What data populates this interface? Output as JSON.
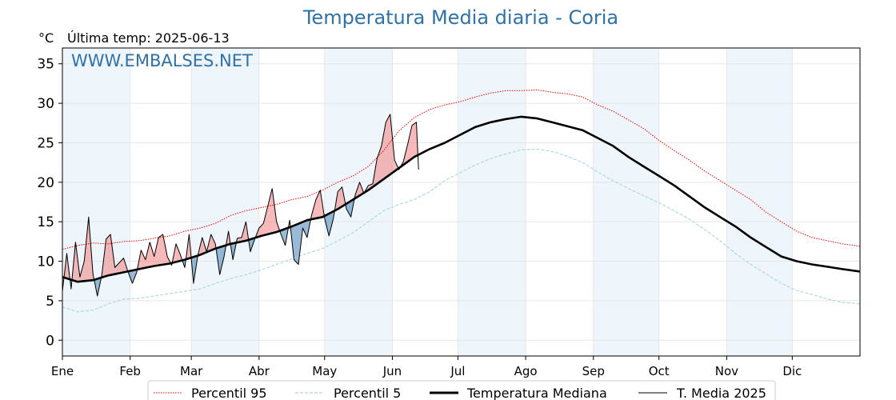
{
  "chart_data": {
    "type": "line",
    "title": "Temperatura Media diaria - Coria",
    "unit_label": "°C",
    "last_temp": "Última temp: 2025-06-13",
    "watermark": "WWW.EMBALSES.NET",
    "x_ticks": [
      "Ene",
      "Feb",
      "Mar",
      "Abr",
      "May",
      "Jun",
      "Jul",
      "Ago",
      "Sep",
      "Oct",
      "Nov",
      "Dic"
    ],
    "month_start_days": [
      1,
      32,
      60,
      91,
      121,
      152,
      182,
      213,
      244,
      274,
      305,
      335
    ],
    "xlim": [
      1,
      366
    ],
    "ylim": [
      -2,
      37
    ],
    "y_ticks": [
      0,
      5,
      10,
      15,
      20,
      25,
      30,
      35
    ],
    "grid": true,
    "legend_position": "bottom",
    "colors": {
      "p95": "#ff0000",
      "p5": "#add8e6",
      "median": "#000000",
      "current": "#000000",
      "above_fill": "#f08080",
      "below_fill": "#4682b4",
      "month_band": "#eef5fb",
      "title": "#2f72a8"
    },
    "series": [
      {
        "name": "Percentil 95",
        "style": "dotted",
        "x": [
          1,
          8,
          15,
          22,
          29,
          36,
          43,
          50,
          57,
          64,
          71,
          78,
          85,
          92,
          99,
          106,
          113,
          120,
          127,
          134,
          141,
          148,
          155,
          162,
          169,
          176,
          183,
          190,
          197,
          204,
          211,
          218,
          225,
          232,
          239,
          246,
          253,
          260,
          267,
          274,
          281,
          288,
          295,
          302,
          309,
          316,
          323,
          330,
          337,
          344,
          351,
          358,
          366
        ],
        "values": [
          11.5,
          12.0,
          12.3,
          12.2,
          12.5,
          12.6,
          12.9,
          13.2,
          13.8,
          14.2,
          14.8,
          15.8,
          16.4,
          16.8,
          17.2,
          17.8,
          18.2,
          19.0,
          20.0,
          20.8,
          22.0,
          24.0,
          26.5,
          28.2,
          29.2,
          29.8,
          30.2,
          30.8,
          31.3,
          31.6,
          31.6,
          31.7,
          31.4,
          31.2,
          30.8,
          29.8,
          29.0,
          27.9,
          26.8,
          25.3,
          24.0,
          22.8,
          21.4,
          20.2,
          19.0,
          17.8,
          16.2,
          15.0,
          13.8,
          13.0,
          12.6,
          12.2,
          11.9
        ]
      },
      {
        "name": "Percentil 5",
        "style": "dashed",
        "x": [
          1,
          8,
          15,
          22,
          29,
          36,
          43,
          50,
          57,
          64,
          71,
          78,
          85,
          92,
          99,
          106,
          113,
          120,
          127,
          134,
          141,
          148,
          155,
          162,
          169,
          176,
          183,
          190,
          197,
          204,
          211,
          218,
          225,
          232,
          239,
          246,
          253,
          260,
          267,
          274,
          281,
          288,
          295,
          302,
          309,
          316,
          323,
          330,
          337,
          344,
          351,
          358,
          366
        ],
        "values": [
          4.2,
          3.6,
          3.8,
          4.6,
          5.2,
          5.3,
          5.6,
          5.9,
          6.2,
          6.5,
          7.2,
          7.8,
          8.3,
          8.9,
          9.6,
          10.3,
          11.0,
          11.6,
          12.6,
          13.6,
          15.0,
          16.4,
          17.2,
          17.8,
          18.8,
          20.2,
          21.2,
          22.2,
          23.0,
          23.6,
          24.1,
          24.2,
          23.9,
          23.3,
          22.5,
          21.3,
          20.2,
          19.2,
          18.3,
          17.4,
          16.4,
          15.3,
          14.0,
          12.6,
          11.0,
          9.6,
          8.4,
          7.2,
          6.3,
          5.8,
          5.2,
          4.8,
          4.6
        ]
      },
      {
        "name": "Temperatura Mediana",
        "style": "solid-thick",
        "x": [
          1,
          8,
          15,
          22,
          29,
          36,
          43,
          50,
          57,
          64,
          71,
          78,
          85,
          92,
          99,
          106,
          113,
          120,
          127,
          134,
          141,
          148,
          155,
          162,
          169,
          176,
          183,
          190,
          197,
          204,
          211,
          218,
          225,
          232,
          239,
          246,
          253,
          260,
          267,
          274,
          281,
          288,
          295,
          302,
          309,
          316,
          323,
          330,
          337,
          344,
          351,
          358,
          366
        ],
        "values": [
          8.0,
          7.4,
          7.6,
          8.2,
          8.6,
          9.0,
          9.4,
          9.7,
          10.2,
          10.8,
          11.6,
          12.2,
          12.6,
          13.2,
          13.7,
          14.4,
          15.2,
          15.6,
          16.6,
          17.8,
          19.0,
          20.4,
          21.8,
          23.2,
          24.2,
          25.0,
          26.0,
          27.0,
          27.6,
          28.0,
          28.3,
          28.1,
          27.6,
          27.1,
          26.6,
          25.6,
          24.6,
          23.2,
          22.0,
          20.8,
          19.6,
          18.2,
          16.8,
          15.6,
          14.4,
          13.0,
          11.8,
          10.6,
          10.0,
          9.6,
          9.3,
          9.0,
          8.7
        ]
      },
      {
        "name": "T. Media 2025",
        "style": "solid-thin",
        "x": [
          1,
          3,
          5,
          7,
          9,
          11,
          13,
          15,
          17,
          19,
          21,
          23,
          25,
          27,
          29,
          31,
          33,
          35,
          37,
          39,
          41,
          43,
          45,
          47,
          49,
          51,
          53,
          55,
          57,
          59,
          61,
          63,
          65,
          67,
          69,
          71,
          73,
          75,
          77,
          79,
          81,
          83,
          85,
          87,
          89,
          91,
          93,
          95,
          97,
          99,
          101,
          103,
          105,
          107,
          109,
          111,
          113,
          115,
          117,
          119,
          121,
          123,
          125,
          127,
          129,
          131,
          133,
          135,
          137,
          139,
          141,
          143,
          145,
          147,
          149,
          151,
          153,
          155,
          157,
          159,
          161,
          163,
          164
        ],
        "values": [
          6.2,
          11.0,
          6.5,
          12.4,
          8.0,
          10.0,
          15.6,
          8.4,
          5.6,
          8.2,
          12.8,
          13.4,
          9.2,
          9.8,
          10.4,
          8.7,
          7.2,
          8.6,
          11.4,
          10.2,
          12.4,
          10.6,
          13.0,
          13.4,
          10.6,
          9.5,
          12.2,
          10.8,
          9.2,
          13.4,
          7.2,
          10.8,
          13.0,
          11.2,
          13.4,
          12.2,
          8.3,
          10.6,
          13.8,
          10.2,
          12.9,
          13.0,
          15.0,
          11.2,
          12.8,
          14.2,
          14.8,
          17.0,
          19.2,
          15.0,
          13.4,
          12.0,
          15.2,
          10.2,
          9.6,
          14.2,
          13.0,
          15.8,
          17.8,
          19.0,
          15.4,
          13.2,
          15.4,
          18.8,
          19.4,
          16.6,
          15.6,
          18.4,
          20.0,
          18.6,
          19.6,
          19.8,
          23.0,
          24.6,
          27.6,
          28.6,
          22.8,
          21.6,
          22.6,
          24.8,
          27.2,
          27.6,
          21.6
        ]
      }
    ]
  }
}
